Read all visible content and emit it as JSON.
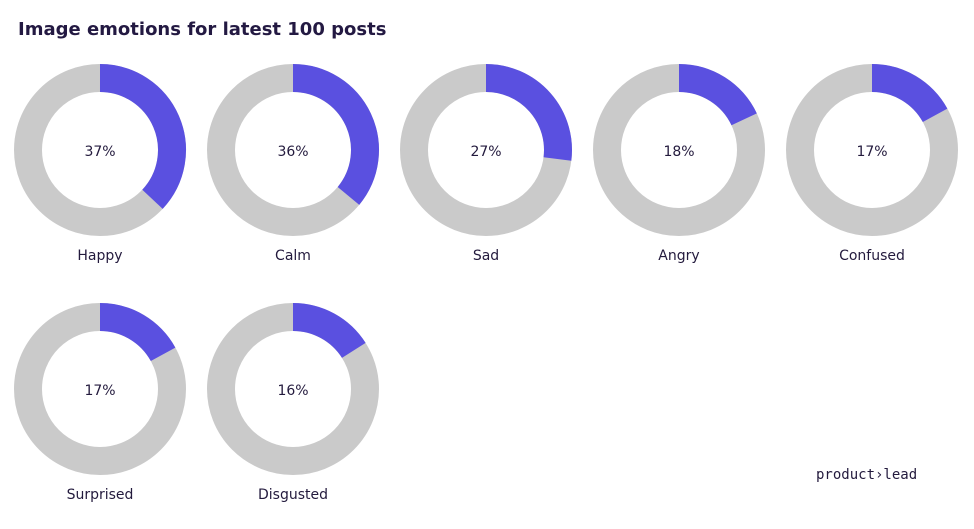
{
  "title": "Image emotions for latest 100 posts",
  "brand": "product›lead",
  "chart_data": [
    {
      "type": "donut",
      "label": "Happy",
      "values": [
        37
      ],
      "value_labels": [
        "37%"
      ],
      "color": "#5a50e0",
      "track_color": "#cacaca",
      "ylim": [
        0,
        100
      ]
    },
    {
      "type": "donut",
      "label": "Calm",
      "values": [
        36
      ],
      "value_labels": [
        "36%"
      ],
      "color": "#5a50e0",
      "track_color": "#cacaca",
      "ylim": [
        0,
        100
      ]
    },
    {
      "type": "donut",
      "label": "Sad",
      "values": [
        27
      ],
      "value_labels": [
        "27%"
      ],
      "color": "#5a50e0",
      "track_color": "#cacaca",
      "ylim": [
        0,
        100
      ]
    },
    {
      "type": "donut",
      "label": "Angry",
      "values": [
        18
      ],
      "value_labels": [
        "18%"
      ],
      "color": "#5a50e0",
      "track_color": "#cacaca",
      "ylim": [
        0,
        100
      ]
    },
    {
      "type": "donut",
      "label": "Confused",
      "values": [
        17
      ],
      "value_labels": [
        "17%"
      ],
      "color": "#5a50e0",
      "track_color": "#cacaca",
      "ylim": [
        0,
        100
      ]
    },
    {
      "type": "donut",
      "label": "Surprised",
      "values": [
        17
      ],
      "value_labels": [
        "17%"
      ],
      "color": "#5a50e0",
      "track_color": "#cacaca",
      "ylim": [
        0,
        100
      ]
    },
    {
      "type": "donut",
      "label": "Disgusted",
      "values": [
        16
      ],
      "value_labels": [
        "16%"
      ],
      "color": "#5a50e0",
      "track_color": "#cacaca",
      "ylim": [
        0,
        100
      ]
    }
  ]
}
